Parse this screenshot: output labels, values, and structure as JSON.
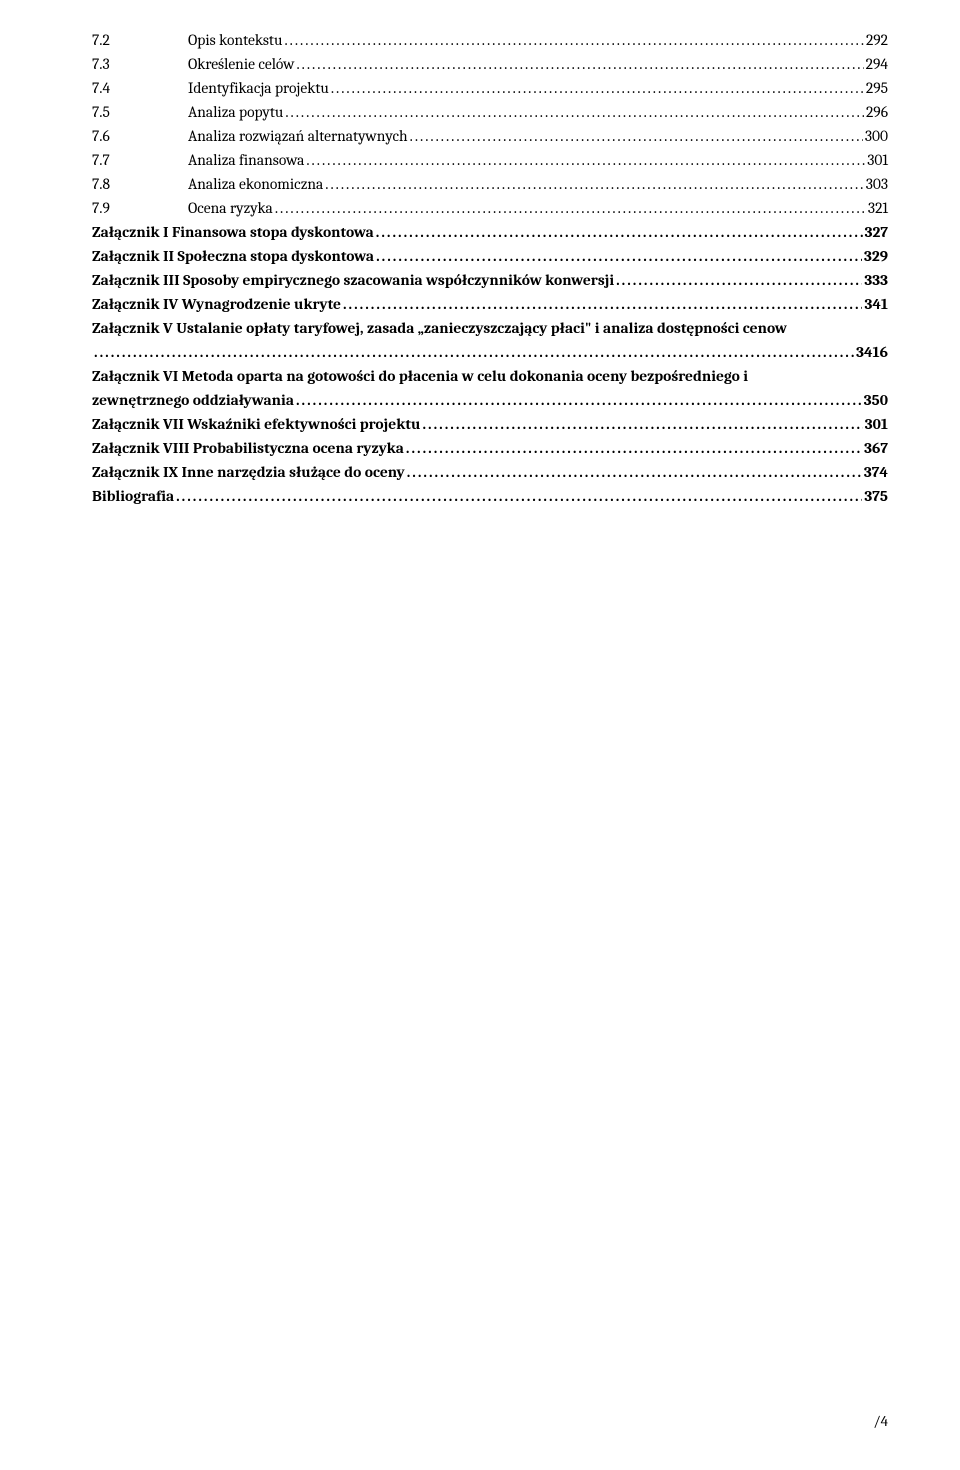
{
  "toc_numbered": [
    {
      "num": "7.2",
      "label": "Opis kontekstu",
      "page": "292"
    },
    {
      "num": "7.3",
      "label": "Określenie celów",
      "page": "294"
    },
    {
      "num": "7.4",
      "label": "Identyfikacja projektu",
      "page": "295"
    },
    {
      "num": "7.5",
      "label": "Analiza popytu",
      "page": "296"
    },
    {
      "num": "7.6",
      "label": "Analiza rozwiązań alternatywnych",
      "page": "300"
    },
    {
      "num": "7.7",
      "label": "Analiza finansowa",
      "page": "301"
    },
    {
      "num": "7.8",
      "label": "Analiza ekonomiczna",
      "page": "303"
    },
    {
      "num": "7.9",
      "label": "Ocena ryzyka",
      "page": "321"
    }
  ],
  "toc_bold": [
    {
      "label": "Załącznik I Finansowa stopa dyskontowa ",
      "page": "327"
    },
    {
      "label": "Załącznik II Społeczna stopa dyskontowa",
      "page": "329"
    },
    {
      "label": "Załącznik III Sposoby empirycznego szacowania współczynników konwersji",
      "page": "333"
    },
    {
      "label": "Załącznik IV Wynagrodzenie ukryte",
      "page": "341"
    }
  ],
  "toc_wrap1": {
    "line1": "Załącznik V Ustalanie opłaty taryfowej, zasada „zanieczyszczający płaci\" i analiza dostępności cenow",
    "page": "3416"
  },
  "toc_wrap2": {
    "line1": "Załącznik VI Metoda oparta na gotowości do płacenia w celu dokonania oceny bezpośredniego i",
    "line2": "zewnętrznego oddziaływania",
    "page": "350"
  },
  "toc_bold2": [
    {
      "label": "Załącznik VII Wskaźniki efektywności projektu",
      "page": "301"
    },
    {
      "label": "Załącznik VIII Probabilistyczna ocena ryzyka",
      "page": "367"
    },
    {
      "label": "Załącznik IX Inne narzędzia służące do oceny",
      "page": "374"
    },
    {
      "label": "Bibliografia",
      "page": "375"
    }
  ],
  "footer": "/4"
}
